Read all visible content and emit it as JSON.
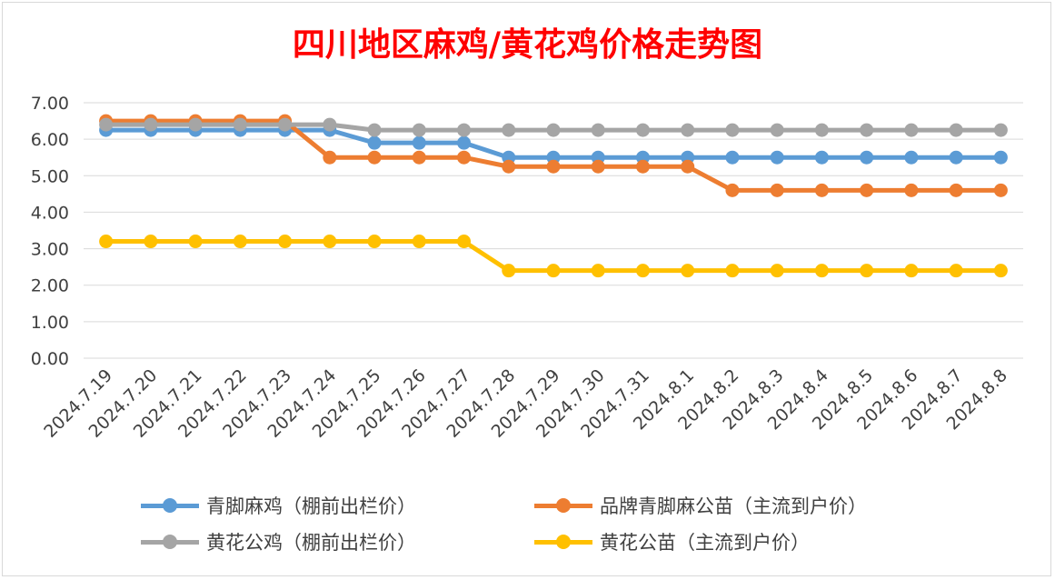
{
  "chart_data": {
    "type": "line",
    "title": "四川地区麻鸡/黄花鸡价格走势图",
    "xlabel": "",
    "ylabel": "",
    "ylim": [
      0,
      7
    ],
    "yticks": [
      "0.00",
      "1.00",
      "2.00",
      "3.00",
      "4.00",
      "5.00",
      "6.00",
      "7.00"
    ],
    "grid": true,
    "legend_position": "bottom",
    "categories": [
      "2024.7.19",
      "2024.7.20",
      "2024.7.21",
      "2024.7.22",
      "2024.7.23",
      "2024.7.24",
      "2024.7.25",
      "2024.7.26",
      "2024.7.27",
      "2024.7.28",
      "2024.7.29",
      "2024.7.30",
      "2024.7.31",
      "2024.8.1",
      "2024.8.2",
      "2024.8.3",
      "2024.8.4",
      "2024.8.5",
      "2024.8.6",
      "2024.8.7",
      "2024.8.8"
    ],
    "series": [
      {
        "name": "青脚麻鸡（棚前出栏价）",
        "color": "#5b9bd5",
        "values": [
          6.25,
          6.25,
          6.25,
          6.25,
          6.25,
          6.25,
          5.9,
          5.9,
          5.9,
          5.5,
          5.5,
          5.5,
          5.5,
          5.5,
          5.5,
          5.5,
          5.5,
          5.5,
          5.5,
          5.5,
          5.5
        ]
      },
      {
        "name": "品牌青脚麻公苗（主流到户价）",
        "color": "#ed7d31",
        "values": [
          6.5,
          6.5,
          6.5,
          6.5,
          6.5,
          5.5,
          5.5,
          5.5,
          5.5,
          5.25,
          5.25,
          5.25,
          5.25,
          5.25,
          4.6,
          4.6,
          4.6,
          4.6,
          4.6,
          4.6,
          4.6
        ]
      },
      {
        "name": "黄花公鸡（棚前出栏价）",
        "color": "#a5a5a5",
        "values": [
          6.4,
          6.4,
          6.4,
          6.4,
          6.4,
          6.4,
          6.25,
          6.25,
          6.25,
          6.25,
          6.25,
          6.25,
          6.25,
          6.25,
          6.25,
          6.25,
          6.25,
          6.25,
          6.25,
          6.25,
          6.25
        ]
      },
      {
        "name": "黄花公苗（主流到户价）",
        "color": "#ffc000",
        "values": [
          3.2,
          3.2,
          3.2,
          3.2,
          3.2,
          3.2,
          3.2,
          3.2,
          3.2,
          2.4,
          2.4,
          2.4,
          2.4,
          2.4,
          2.4,
          2.4,
          2.4,
          2.4,
          2.4,
          2.4,
          2.4
        ]
      }
    ]
  }
}
